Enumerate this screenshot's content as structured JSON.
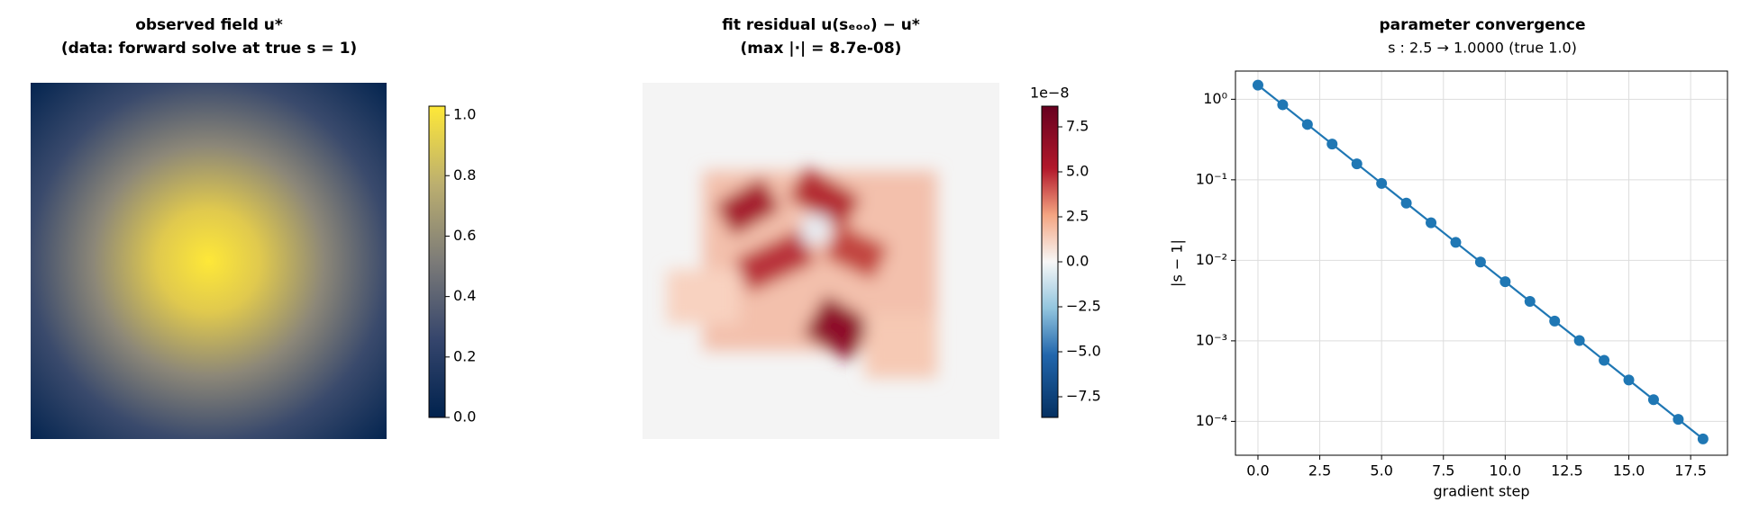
{
  "chart_data": [
    {
      "type": "heatmap",
      "title": "observed field  u*",
      "subtitle": "(data: forward solve at true s = 1)",
      "colormap": "cividis",
      "clim": [
        0,
        1.03
      ],
      "cticks": [
        {
          "value": 0,
          "label": "0.0"
        },
        {
          "value": 0.2,
          "label": "0.2"
        },
        {
          "value": 0.4,
          "label": "0.4"
        },
        {
          "value": 0.6,
          "label": "0.6"
        },
        {
          "value": 0.8,
          "label": "0.8"
        },
        {
          "value": 1,
          "label": "1.0"
        }
      ]
    },
    {
      "type": "heatmap",
      "title": "fit residual  u(sₑₒₒ) − u*",
      "subtitle": "(max |·| = 8.7e-08)",
      "colormap": "RdBu_r",
      "clim": [
        -8.65,
        8.65
      ],
      "offset_label": "1e−8",
      "cticks": [
        {
          "value": -7.5,
          "label": "−7.5"
        },
        {
          "value": -5,
          "label": "−5.0"
        },
        {
          "value": -2.5,
          "label": "−2.5"
        },
        {
          "value": 0,
          "label": "0.0"
        },
        {
          "value": 2.5,
          "label": "2.5"
        },
        {
          "value": 5,
          "label": "5.0"
        },
        {
          "value": 7.5,
          "label": "7.5"
        }
      ]
    },
    {
      "type": "line",
      "title": "parameter convergence",
      "subtitle": "s : 2.5 → 1.0000  (true 1.0)",
      "xlabel": "gradient step",
      "ylabel": "|s − 1|",
      "x": [
        0,
        1,
        2,
        3,
        4,
        5,
        6,
        7,
        8,
        9,
        10,
        11,
        12,
        13,
        14,
        15,
        16,
        17,
        18
      ],
      "series": [
        {
          "color": "#1f77b4",
          "values": [
            1.5,
            0.855,
            0.487,
            0.278,
            0.158,
            0.0902,
            0.0514,
            0.0293,
            0.0167,
            0.00952,
            0.00543,
            0.00309,
            0.00176,
            0.00101,
            0.000573,
            0.000327,
            0.000186,
            0.000106,
            6.05e-05
          ]
        }
      ],
      "xlim": [
        -0.91,
        18.99
      ],
      "ylim": [
        3.8e-05,
        2.24
      ],
      "log_y": true,
      "grid": true,
      "xticks": [
        {
          "value": 0,
          "label": "0.0"
        },
        {
          "value": 2.5,
          "label": "2.5"
        },
        {
          "value": 5,
          "label": "5.0"
        },
        {
          "value": 7.5,
          "label": "7.5"
        },
        {
          "value": 10,
          "label": "10.0"
        },
        {
          "value": 12.5,
          "label": "12.5"
        },
        {
          "value": 15,
          "label": "15.0"
        },
        {
          "value": 17.5,
          "label": "17.5"
        }
      ],
      "yticks": [
        {
          "value": 0.0001,
          "label": "10⁻⁴"
        },
        {
          "value": 0.001,
          "label": "10⁻³"
        },
        {
          "value": 0.01,
          "label": "10⁻²"
        },
        {
          "value": 0.1,
          "label": "10⁻¹"
        },
        {
          "value": 1,
          "label": "10⁰"
        }
      ]
    }
  ]
}
